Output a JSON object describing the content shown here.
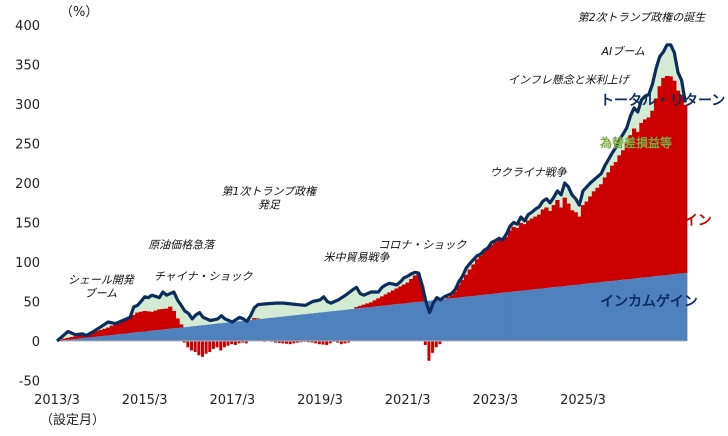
{
  "chart_data": {
    "type": "area",
    "unit_label": "（%）",
    "x_ticks": [
      "2013/3",
      "2015/3",
      "2017/3",
      "2019/3",
      "2021/3",
      "2023/3",
      "2025/3"
    ],
    "x_subtitle": "（設定月）",
    "ylim": [
      -50,
      400
    ],
    "y_ticks": [
      -50,
      0,
      50,
      100,
      150,
      200,
      250,
      300,
      350,
      400
    ],
    "grid": false,
    "colors": {
      "total_return": "#0b2d5e",
      "fx_gain": "#d3ebd3",
      "capital_gain": "#cc0000",
      "income_gain": "#4f81bd",
      "fx_label": "#7aab3e"
    },
    "series_labels": {
      "total_return": "トータル・リターン",
      "fx_gain": "為替差損益等",
      "capital_gain": "キャピタルゲイン",
      "income_gain": "インカムゲイン"
    },
    "total_return": [
      [
        0,
        0
      ],
      [
        2,
        8
      ],
      [
        3,
        12
      ],
      [
        5,
        8
      ],
      [
        7,
        9
      ],
      [
        8,
        7
      ],
      [
        10,
        12
      ],
      [
        12,
        18
      ],
      [
        14,
        24
      ],
      [
        16,
        22
      ],
      [
        18,
        26
      ],
      [
        20,
        30
      ],
      [
        21,
        43
      ],
      [
        22,
        45
      ],
      [
        23,
        50
      ],
      [
        24,
        56
      ],
      [
        25,
        55
      ],
      [
        26,
        58
      ],
      [
        28,
        55
      ],
      [
        29,
        62
      ],
      [
        30,
        58
      ],
      [
        31,
        60
      ],
      [
        32,
        62
      ],
      [
        33,
        52
      ],
      [
        34,
        45
      ],
      [
        35,
        38
      ],
      [
        36,
        35
      ],
      [
        37,
        28
      ],
      [
        38,
        33
      ],
      [
        39,
        36
      ],
      [
        40,
        30
      ],
      [
        42,
        26
      ],
      [
        44,
        28
      ],
      [
        45,
        32
      ],
      [
        46,
        28
      ],
      [
        48,
        24
      ],
      [
        50,
        30
      ],
      [
        51,
        28
      ],
      [
        52,
        25
      ],
      [
        53,
        32
      ],
      [
        54,
        42
      ],
      [
        55,
        46
      ],
      [
        57,
        47
      ],
      [
        60,
        48
      ],
      [
        62,
        48
      ],
      [
        64,
        47
      ],
      [
        66,
        46
      ],
      [
        68,
        45
      ],
      [
        70,
        50
      ],
      [
        72,
        52
      ],
      [
        73,
        56
      ],
      [
        74,
        50
      ],
      [
        75,
        48
      ],
      [
        77,
        52
      ],
      [
        79,
        58
      ],
      [
        81,
        65
      ],
      [
        82,
        68
      ],
      [
        83,
        60
      ],
      [
        84,
        58
      ],
      [
        86,
        62
      ],
      [
        88,
        62
      ],
      [
        89,
        68
      ],
      [
        90,
        71
      ],
      [
        91,
        73
      ],
      [
        92,
        72
      ],
      [
        93,
        71
      ],
      [
        94,
        75
      ],
      [
        95,
        80
      ],
      [
        96,
        82
      ],
      [
        97,
        85
      ],
      [
        98,
        87
      ],
      [
        99,
        86
      ],
      [
        100,
        70
      ],
      [
        101,
        50
      ],
      [
        102,
        36
      ],
      [
        103,
        48
      ],
      [
        104,
        55
      ],
      [
        105,
        52
      ],
      [
        106,
        56
      ],
      [
        107,
        58
      ],
      [
        108,
        60
      ],
      [
        109,
        65
      ],
      [
        110,
        75
      ],
      [
        111,
        82
      ],
      [
        112,
        92
      ],
      [
        113,
        98
      ],
      [
        114,
        103
      ],
      [
        115,
        108
      ],
      [
        116,
        110
      ],
      [
        117,
        115
      ],
      [
        118,
        118
      ],
      [
        119,
        125
      ],
      [
        120,
        127
      ],
      [
        121,
        130
      ],
      [
        122,
        128
      ],
      [
        123,
        135
      ],
      [
        124,
        145
      ],
      [
        125,
        150
      ],
      [
        126,
        148
      ],
      [
        127,
        157
      ],
      [
        128,
        152
      ],
      [
        129,
        160
      ],
      [
        130,
        163
      ],
      [
        131,
        167
      ],
      [
        132,
        170
      ],
      [
        133,
        177
      ],
      [
        134,
        180
      ],
      [
        135,
        175
      ],
      [
        136,
        182
      ],
      [
        137,
        190
      ],
      [
        138,
        185
      ],
      [
        139,
        200
      ],
      [
        140,
        195
      ],
      [
        141,
        185
      ],
      [
        142,
        180
      ],
      [
        143,
        172
      ],
      [
        144,
        190
      ],
      [
        145,
        195
      ],
      [
        146,
        200
      ],
      [
        147,
        204
      ],
      [
        148,
        208
      ],
      [
        149,
        212
      ],
      [
        150,
        222
      ],
      [
        151,
        230
      ],
      [
        152,
        238
      ],
      [
        153,
        245
      ],
      [
        154,
        255
      ],
      [
        155,
        262
      ],
      [
        156,
        270
      ],
      [
        157,
        285
      ],
      [
        158,
        295
      ],
      [
        159,
        290
      ],
      [
        160,
        305
      ],
      [
        161,
        310
      ],
      [
        162,
        312
      ],
      [
        163,
        325
      ],
      [
        164,
        345
      ],
      [
        165,
        360
      ],
      [
        166,
        366
      ],
      [
        167,
        375
      ],
      [
        168,
        375
      ],
      [
        169,
        365
      ],
      [
        170,
        340
      ],
      [
        171,
        330
      ],
      [
        172,
        302
      ]
    ],
    "capital_gain": [
      [
        0,
        0
      ],
      [
        2,
        2
      ],
      [
        4,
        3
      ],
      [
        6,
        4
      ],
      [
        8,
        5
      ],
      [
        10,
        6
      ],
      [
        12,
        8
      ],
      [
        14,
        10
      ],
      [
        16,
        14
      ],
      [
        18,
        18
      ],
      [
        20,
        20
      ],
      [
        22,
        25
      ],
      [
        24,
        26
      ],
      [
        26,
        24
      ],
      [
        28,
        26
      ],
      [
        30,
        26
      ],
      [
        31,
        28
      ],
      [
        32,
        22
      ],
      [
        33,
        12
      ],
      [
        34,
        4
      ],
      [
        35,
        -2
      ],
      [
        36,
        -8
      ],
      [
        37,
        -12
      ],
      [
        38,
        -14
      ],
      [
        39,
        -18
      ],
      [
        40,
        -20
      ],
      [
        41,
        -16
      ],
      [
        42,
        -14
      ],
      [
        43,
        -10
      ],
      [
        44,
        -8
      ],
      [
        45,
        -12
      ],
      [
        46,
        -8
      ],
      [
        47,
        -6
      ],
      [
        48,
        -4
      ],
      [
        49,
        -5
      ],
      [
        50,
        -3
      ],
      [
        51,
        -2
      ],
      [
        52,
        -3
      ],
      [
        53,
        0
      ],
      [
        54,
        2
      ],
      [
        55,
        1
      ],
      [
        56,
        0
      ],
      [
        57,
        -1
      ],
      [
        58,
        0
      ],
      [
        60,
        -2
      ],
      [
        62,
        -3
      ],
      [
        64,
        -4
      ],
      [
        66,
        -2
      ],
      [
        68,
        -1
      ],
      [
        70,
        -2
      ],
      [
        72,
        -4
      ],
      [
        74,
        -5
      ],
      [
        75,
        -3
      ],
      [
        76,
        -1
      ],
      [
        77,
        -2
      ],
      [
        78,
        -4
      ],
      [
        80,
        -2
      ],
      [
        82,
        2
      ],
      [
        84,
        4
      ],
      [
        86,
        6
      ],
      [
        88,
        10
      ],
      [
        90,
        14
      ],
      [
        92,
        18
      ],
      [
        94,
        22
      ],
      [
        96,
        26
      ],
      [
        97,
        30
      ],
      [
        98,
        34
      ],
      [
        99,
        36
      ],
      [
        100,
        20
      ],
      [
        101,
        -5
      ],
      [
        102,
        -25
      ],
      [
        103,
        -15
      ],
      [
        104,
        -8
      ],
      [
        105,
        -4
      ],
      [
        106,
        0
      ],
      [
        107,
        2
      ],
      [
        108,
        4
      ],
      [
        109,
        8
      ],
      [
        110,
        16
      ],
      [
        111,
        22
      ],
      [
        112,
        28
      ],
      [
        113,
        34
      ],
      [
        114,
        40
      ],
      [
        115,
        46
      ],
      [
        116,
        50
      ],
      [
        117,
        55
      ],
      [
        118,
        58
      ],
      [
        119,
        62
      ],
      [
        120,
        65
      ],
      [
        121,
        68
      ],
      [
        122,
        66
      ],
      [
        123,
        70
      ],
      [
        124,
        78
      ],
      [
        125,
        82
      ],
      [
        126,
        80
      ],
      [
        127,
        86
      ],
      [
        128,
        84
      ],
      [
        129,
        88
      ],
      [
        130,
        90
      ],
      [
        131,
        92
      ],
      [
        132,
        94
      ],
      [
        133,
        100
      ],
      [
        134,
        102
      ],
      [
        135,
        97
      ],
      [
        136,
        104
      ],
      [
        137,
        110
      ],
      [
        138,
        100
      ],
      [
        139,
        112
      ],
      [
        140,
        104
      ],
      [
        141,
        95
      ],
      [
        142,
        92
      ],
      [
        143,
        86
      ],
      [
        144,
        100
      ],
      [
        145,
        104
      ],
      [
        146,
        110
      ],
      [
        147,
        116
      ],
      [
        148,
        120
      ],
      [
        149,
        124
      ],
      [
        150,
        132
      ],
      [
        151,
        138
      ],
      [
        152,
        146
      ],
      [
        153,
        150
      ],
      [
        154,
        158
      ],
      [
        155,
        164
      ],
      [
        156,
        172
      ],
      [
        157,
        182
      ],
      [
        158,
        190
      ],
      [
        159,
        185
      ],
      [
        160,
        196
      ],
      [
        161,
        200
      ],
      [
        162,
        202
      ],
      [
        163,
        210
      ],
      [
        164,
        225
      ],
      [
        165,
        240
      ],
      [
        166,
        250
      ],
      [
        167,
        252
      ],
      [
        168,
        251
      ],
      [
        169,
        245
      ],
      [
        170,
        232
      ],
      [
        171,
        226
      ],
      [
        172,
        213
      ]
    ],
    "income_gain": [
      [
        0,
        0
      ],
      [
        172,
        86
      ]
    ],
    "annotations": [
      {
        "text": "シェール開発",
        "x": 12,
        "y": 73
      },
      {
        "text": "ブーム",
        "x": 12,
        "y": 56
      },
      {
        "text": "チャイナ・ショック",
        "x": 40,
        "y": 77
      },
      {
        "text": "原油価格急落",
        "x": 34,
        "y": 117
      },
      {
        "text": "第1次トランプ政権",
        "x": 58,
        "y": 185
      },
      {
        "text": "発足",
        "x": 58,
        "y": 168
      },
      {
        "text": "米中貿易戦争",
        "x": 82,
        "y": 101
      },
      {
        "text": "コロナ・ショック",
        "x": 100,
        "y": 117
      },
      {
        "text": "ウクライナ戦争",
        "x": 129,
        "y": 209
      },
      {
        "text": "インフレ懸念と米利上げ",
        "x": 140,
        "y": 326
      },
      {
        "text": "AIブーム",
        "x": 155,
        "y": 362
      },
      {
        "text": "第2次トランプ政権の誕生",
        "x": 160,
        "y": 405
      }
    ]
  }
}
